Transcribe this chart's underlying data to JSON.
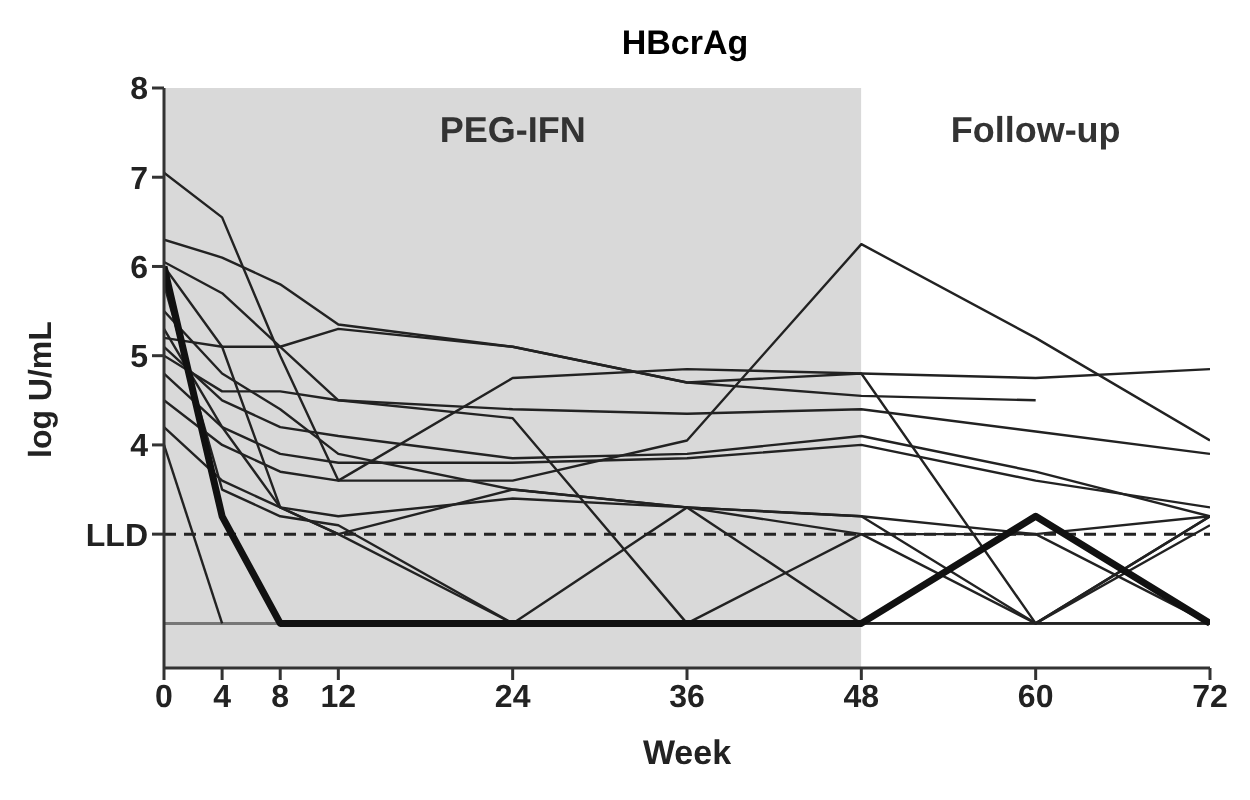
{
  "chart_data": {
    "type": "line",
    "title": "HBcrAg",
    "xlabel": "Week",
    "ylabel": "log U/mL",
    "x": [
      0,
      4,
      8,
      12,
      24,
      36,
      48,
      60,
      72
    ],
    "xlim": [
      0,
      72
    ],
    "xticks": [
      0,
      4,
      8,
      12,
      24,
      36,
      48,
      60,
      72
    ],
    "ylim": [
      1.5,
      8
    ],
    "yticks": [
      {
        "value": 3,
        "label": "LLD"
      },
      4,
      5,
      6,
      7,
      8
    ],
    "grid": false,
    "legend": false,
    "marker": "none",
    "line_style": "solid",
    "bands": [
      {
        "axis": "x",
        "from": 0,
        "to": 48,
        "label": "PEG-IFN",
        "color": "#d9d9d9"
      },
      {
        "axis": "x",
        "from": 48,
        "to": 72,
        "label": "Follow-up",
        "color": "#ffffff"
      }
    ],
    "ref_lines": [
      {
        "axis": "y",
        "value": 3,
        "line_style": "dashed",
        "color": "#222222"
      },
      {
        "axis": "y",
        "value": 2,
        "line_style": "solid",
        "color": "#777777"
      }
    ],
    "series": [
      {
        "color": "#222222",
        "values": [
          7.05,
          6.55,
          5.0,
          3.6,
          4.75,
          4.85,
          4.8,
          4.75,
          4.85
        ]
      },
      {
        "color": "#222222",
        "values": [
          6.3,
          6.1,
          5.8,
          5.35,
          5.1,
          4.7,
          4.8,
          2,
          3.2
        ]
      },
      {
        "color": "#222222",
        "values": [
          6.05,
          5.7,
          5.1,
          4.5,
          4.3,
          2,
          3,
          2,
          3.2
        ]
      },
      {
        "color": "#222222",
        "values": [
          4.5,
          4.0,
          3.7,
          3.6,
          3.6,
          4.05,
          6.25,
          5.2,
          4.05
        ]
      },
      {
        "color": "#222222",
        "values": [
          5.2,
          5.1,
          5.1,
          5.3,
          5.1,
          4.7,
          4.55,
          4.5,
          null
        ]
      },
      {
        "color": "#222222",
        "values": [
          5.0,
          4.6,
          4.6,
          4.5,
          4.4,
          4.35,
          4.4,
          4.15,
          3.9
        ]
      },
      {
        "color": "#222222",
        "values": [
          5.1,
          4.5,
          4.2,
          4.1,
          3.85,
          3.9,
          4.1,
          3.7,
          3.2
        ]
      },
      {
        "color": "#222222",
        "values": [
          4.8,
          4.2,
          3.9,
          3.8,
          3.8,
          3.85,
          4.0,
          3.6,
          3.3
        ]
      },
      {
        "color": "#222222",
        "values": [
          5.5,
          4.8,
          4.4,
          3.9,
          3.5,
          3.3,
          3.2,
          3.0,
          2.0
        ]
      },
      {
        "color": "#222222",
        "values": [
          4.2,
          3.6,
          3.3,
          3.2,
          3.4,
          3.3,
          3.2,
          2,
          3.1
        ]
      },
      {
        "color": "#222222",
        "values": [
          5.8,
          3.5,
          3.2,
          3.1,
          2.0,
          3.3,
          2.0,
          2.0,
          2.0
        ]
      },
      {
        "color": "#222222",
        "values": [
          4.0,
          2,
          null,
          null,
          null,
          null,
          null,
          null,
          null
        ]
      },
      {
        "color": "#222222",
        "values": [
          6.0,
          5.1,
          3.3,
          3.0,
          2.0,
          2.0,
          2.0,
          2.0,
          2.0
        ]
      },
      {
        "color": "#222222",
        "values": [
          5.3,
          4.2,
          3.3,
          3.0,
          3.5,
          3.3,
          3.0,
          3.0,
          3.2
        ]
      },
      {
        "color": "#111111",
        "values": [
          6.0,
          3.2,
          2,
          2,
          2,
          2,
          2,
          3.2,
          2
        ]
      }
    ]
  }
}
